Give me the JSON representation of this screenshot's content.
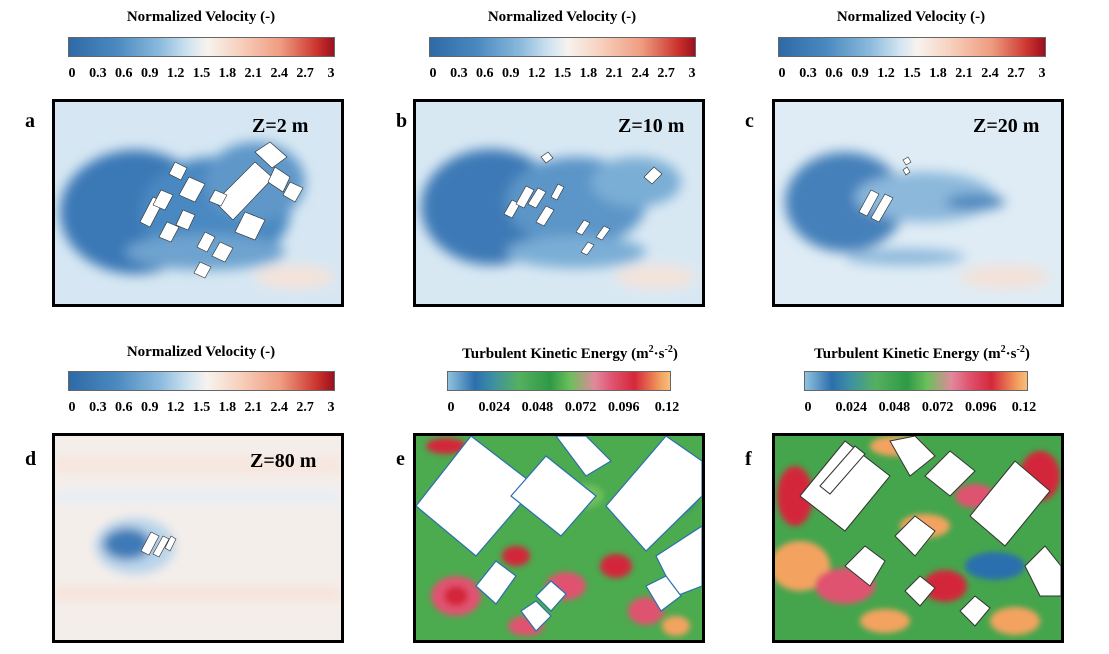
{
  "colorbars": {
    "velocity": {
      "title": "Normalized Velocity (-)",
      "ticks": [
        "0",
        "0.3",
        "0.6",
        "0.9",
        "1.2",
        "1.5",
        "1.8",
        "2.1",
        "2.4",
        "2.7",
        "3"
      ]
    },
    "tke": {
      "title_main": "Turbulent Kinetic Energy (m",
      "title_sup1": "2",
      "title_mid": "·s",
      "title_sup2": "-2",
      "title_end": ")",
      "ticks": [
        "0",
        "0.024",
        "0.048",
        "0.072",
        "0.096",
        "0.12"
      ]
    }
  },
  "panels": {
    "a": {
      "label": "a",
      "height_text": "Z=2 m"
    },
    "b": {
      "label": "b",
      "height_text": "Z=10 m"
    },
    "c": {
      "label": "c",
      "height_text": "Z=20 m"
    },
    "d": {
      "label": "d",
      "height_text": "Z=80 m"
    },
    "e": {
      "label": "e"
    },
    "f": {
      "label": "f"
    }
  },
  "colors": {
    "velocity_low": "#2e6aa6",
    "velocity_mid": "#f7f3ef",
    "velocity_high": "#9b1020",
    "tke_low": "#8fc2dd",
    "tke_mid": "#2e9a45",
    "tke_high": "#f6be80"
  }
}
